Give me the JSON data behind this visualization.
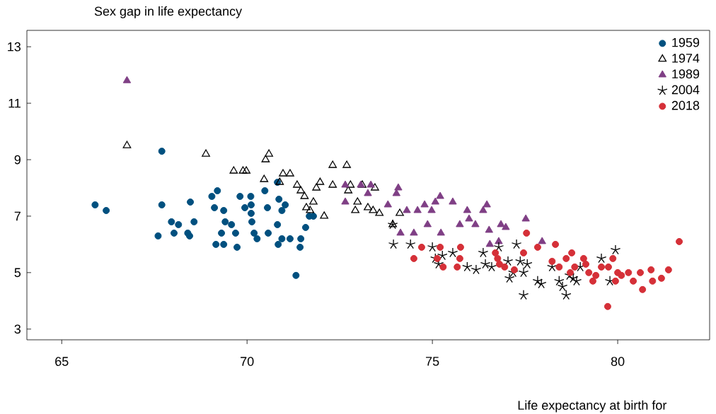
{
  "chart_data": {
    "type": "scatter",
    "ylabel": "Sex gap in life expectancy",
    "xlabel": "Life expectancy at birth for",
    "xlim": [
      64.06,
      82.48
    ],
    "ylim": [
      2.62,
      13.58
    ],
    "xticks": [
      65,
      70,
      75,
      80
    ],
    "yticks": [
      3,
      5,
      7,
      9,
      11,
      13
    ],
    "legend": "top right",
    "grid": false,
    "series": [
      {
        "name": "1959",
        "color": "#00507f",
        "marker": "circle",
        "x": [
          65.9,
          66.2,
          67.6,
          67.7,
          67.7,
          67.96,
          68.03,
          68.15,
          68.4,
          68.47,
          68.57,
          68.45,
          69.05,
          69.2,
          69.12,
          69.37,
          69.41,
          69.31,
          69.16,
          69.37,
          69.73,
          69.58,
          69.69,
          69.81,
          69.94,
          70.1,
          70.11,
          70.11,
          70.13,
          70.19,
          70.27,
          70.48,
          70.55,
          70.57,
          70.82,
          70.86,
          70.94,
          70.82,
          70.84,
          70.94,
          71.03,
          71.16,
          71.32,
          71.43,
          71.45,
          71.58,
          71.68,
          71.79
        ],
        "values": [
          7.4,
          7.2,
          6.3,
          7.4,
          9.3,
          6.8,
          6.4,
          6.7,
          6.4,
          7.5,
          6.8,
          6.3,
          7.7,
          7.9,
          7.3,
          7.2,
          6.8,
          6.4,
          6.0,
          6.0,
          5.9,
          6.7,
          6.4,
          7.7,
          7.3,
          7.7,
          7.4,
          7.1,
          6.8,
          6.4,
          6.2,
          7.9,
          7.3,
          6.4,
          8.2,
          7.6,
          7.2,
          6.7,
          6.0,
          6.2,
          7.4,
          6.2,
          4.9,
          5.9,
          6.2,
          6.6,
          7.0,
          7.0
        ]
      },
      {
        "name": "1974",
        "color": "#000000",
        "marker": "triangle",
        "x": [
          66.76,
          68.89,
          69.64,
          69.89,
          69.98,
          70.59,
          70.5,
          70.46,
          70.88,
          70.97,
          71.16,
          71.35,
          71.45,
          71.55,
          71.6,
          71.7,
          71.79,
          71.87,
          71.97,
          72.08,
          72.31,
          72.31,
          72.69,
          72.73,
          72.79,
          72.92,
          72.98,
          73.11,
          73.26,
          73.4,
          73.45,
          73.57,
          73.93,
          74.12
        ],
        "values": [
          9.5,
          9.2,
          8.6,
          8.6,
          8.6,
          9.2,
          9.0,
          8.3,
          8.2,
          8.5,
          8.5,
          8.1,
          7.9,
          7.7,
          7.3,
          7.2,
          7.5,
          8.0,
          8.2,
          7.0,
          8.1,
          8.8,
          8.8,
          7.9,
          8.1,
          7.2,
          7.5,
          8.1,
          7.3,
          7.2,
          8.0,
          7.1,
          6.7,
          7.1
        ]
      },
      {
        "name": "1989",
        "color": "#7f3f85",
        "marker": "triangle",
        "x": [
          66.76,
          72.65,
          72.65,
          73.07,
          73.26,
          73.34,
          73.8,
          74.03,
          74.08,
          74.14,
          74.31,
          74.5,
          74.6,
          74.79,
          74.87,
          74.98,
          75.08,
          75.21,
          75.23,
          75.55,
          75.74,
          75.94,
          75.99,
          76.16,
          76.37,
          76.47,
          76.53,
          76.55,
          76.79,
          76.85,
          76.98,
          77.52,
          77.96
        ],
        "values": [
          11.8,
          8.1,
          7.5,
          8.1,
          7.8,
          8.1,
          7.4,
          7.8,
          8.0,
          6.4,
          7.2,
          6.4,
          7.2,
          7.4,
          6.7,
          7.2,
          7.5,
          7.7,
          6.4,
          7.5,
          6.7,
          7.2,
          6.9,
          6.7,
          7.2,
          7.4,
          6.5,
          6.0,
          6.1,
          6.7,
          6.6,
          6.9,
          6.1
        ]
      },
      {
        "name": "2004",
        "color": "#000000",
        "marker": "cross",
        "x": [
          73.93,
          73.95,
          74.41,
          75.0,
          75.08,
          75.17,
          75.27,
          75.55,
          75.94,
          76.18,
          76.37,
          76.43,
          76.6,
          76.79,
          77.04,
          77.18,
          77.08,
          77.27,
          77.37,
          77.46,
          77.46,
          77.56,
          77.84,
          77.94,
          78.23,
          78.42,
          78.51,
          78.61,
          78.7,
          78.8,
          78.89,
          78.99,
          79.56,
          79.79,
          79.94
        ],
        "values": [
          6.7,
          6.0,
          6.0,
          5.9,
          5.5,
          5.3,
          5.6,
          5.7,
          5.2,
          5.1,
          5.7,
          5.3,
          5.2,
          5.9,
          5.4,
          5.0,
          4.8,
          6.0,
          5.4,
          5.0,
          4.2,
          5.3,
          4.7,
          4.6,
          5.2,
          4.7,
          4.5,
          4.2,
          4.9,
          4.8,
          4.7,
          5.2,
          5.5,
          4.7,
          5.8
        ]
      },
      {
        "name": "2018",
        "color": "#d53038",
        "marker": "circle",
        "x": [
          74.5,
          74.71,
          75.21,
          75.13,
          75.29,
          75.76,
          75.67,
          75.74,
          76.7,
          76.76,
          76.81,
          76.95,
          77.21,
          77.46,
          77.54,
          77.84,
          78.32,
          78.23,
          78.42,
          78.61,
          78.76,
          78.72,
          78.84,
          79.08,
          79.14,
          79.22,
          79.33,
          79.41,
          79.56,
          79.75,
          79.87,
          79.73,
          80.0,
          79.94,
          80.1,
          80.29,
          80.42,
          80.61,
          80.67,
          80.9,
          80.94,
          81.18,
          81.37,
          81.66
        ],
        "values": [
          5.5,
          5.9,
          5.9,
          5.5,
          5.2,
          5.9,
          5.2,
          5.5,
          5.7,
          5.5,
          5.3,
          5.2,
          5.1,
          5.7,
          6.4,
          5.9,
          6.0,
          5.4,
          5.2,
          5.5,
          5.7,
          5.0,
          5.2,
          5.5,
          5.3,
          5.0,
          4.7,
          4.9,
          5.2,
          5.2,
          5.5,
          3.8,
          5.0,
          4.7,
          4.9,
          5.0,
          4.7,
          5.0,
          4.4,
          5.1,
          4.7,
          4.8,
          5.1,
          6.1
        ]
      }
    ]
  }
}
